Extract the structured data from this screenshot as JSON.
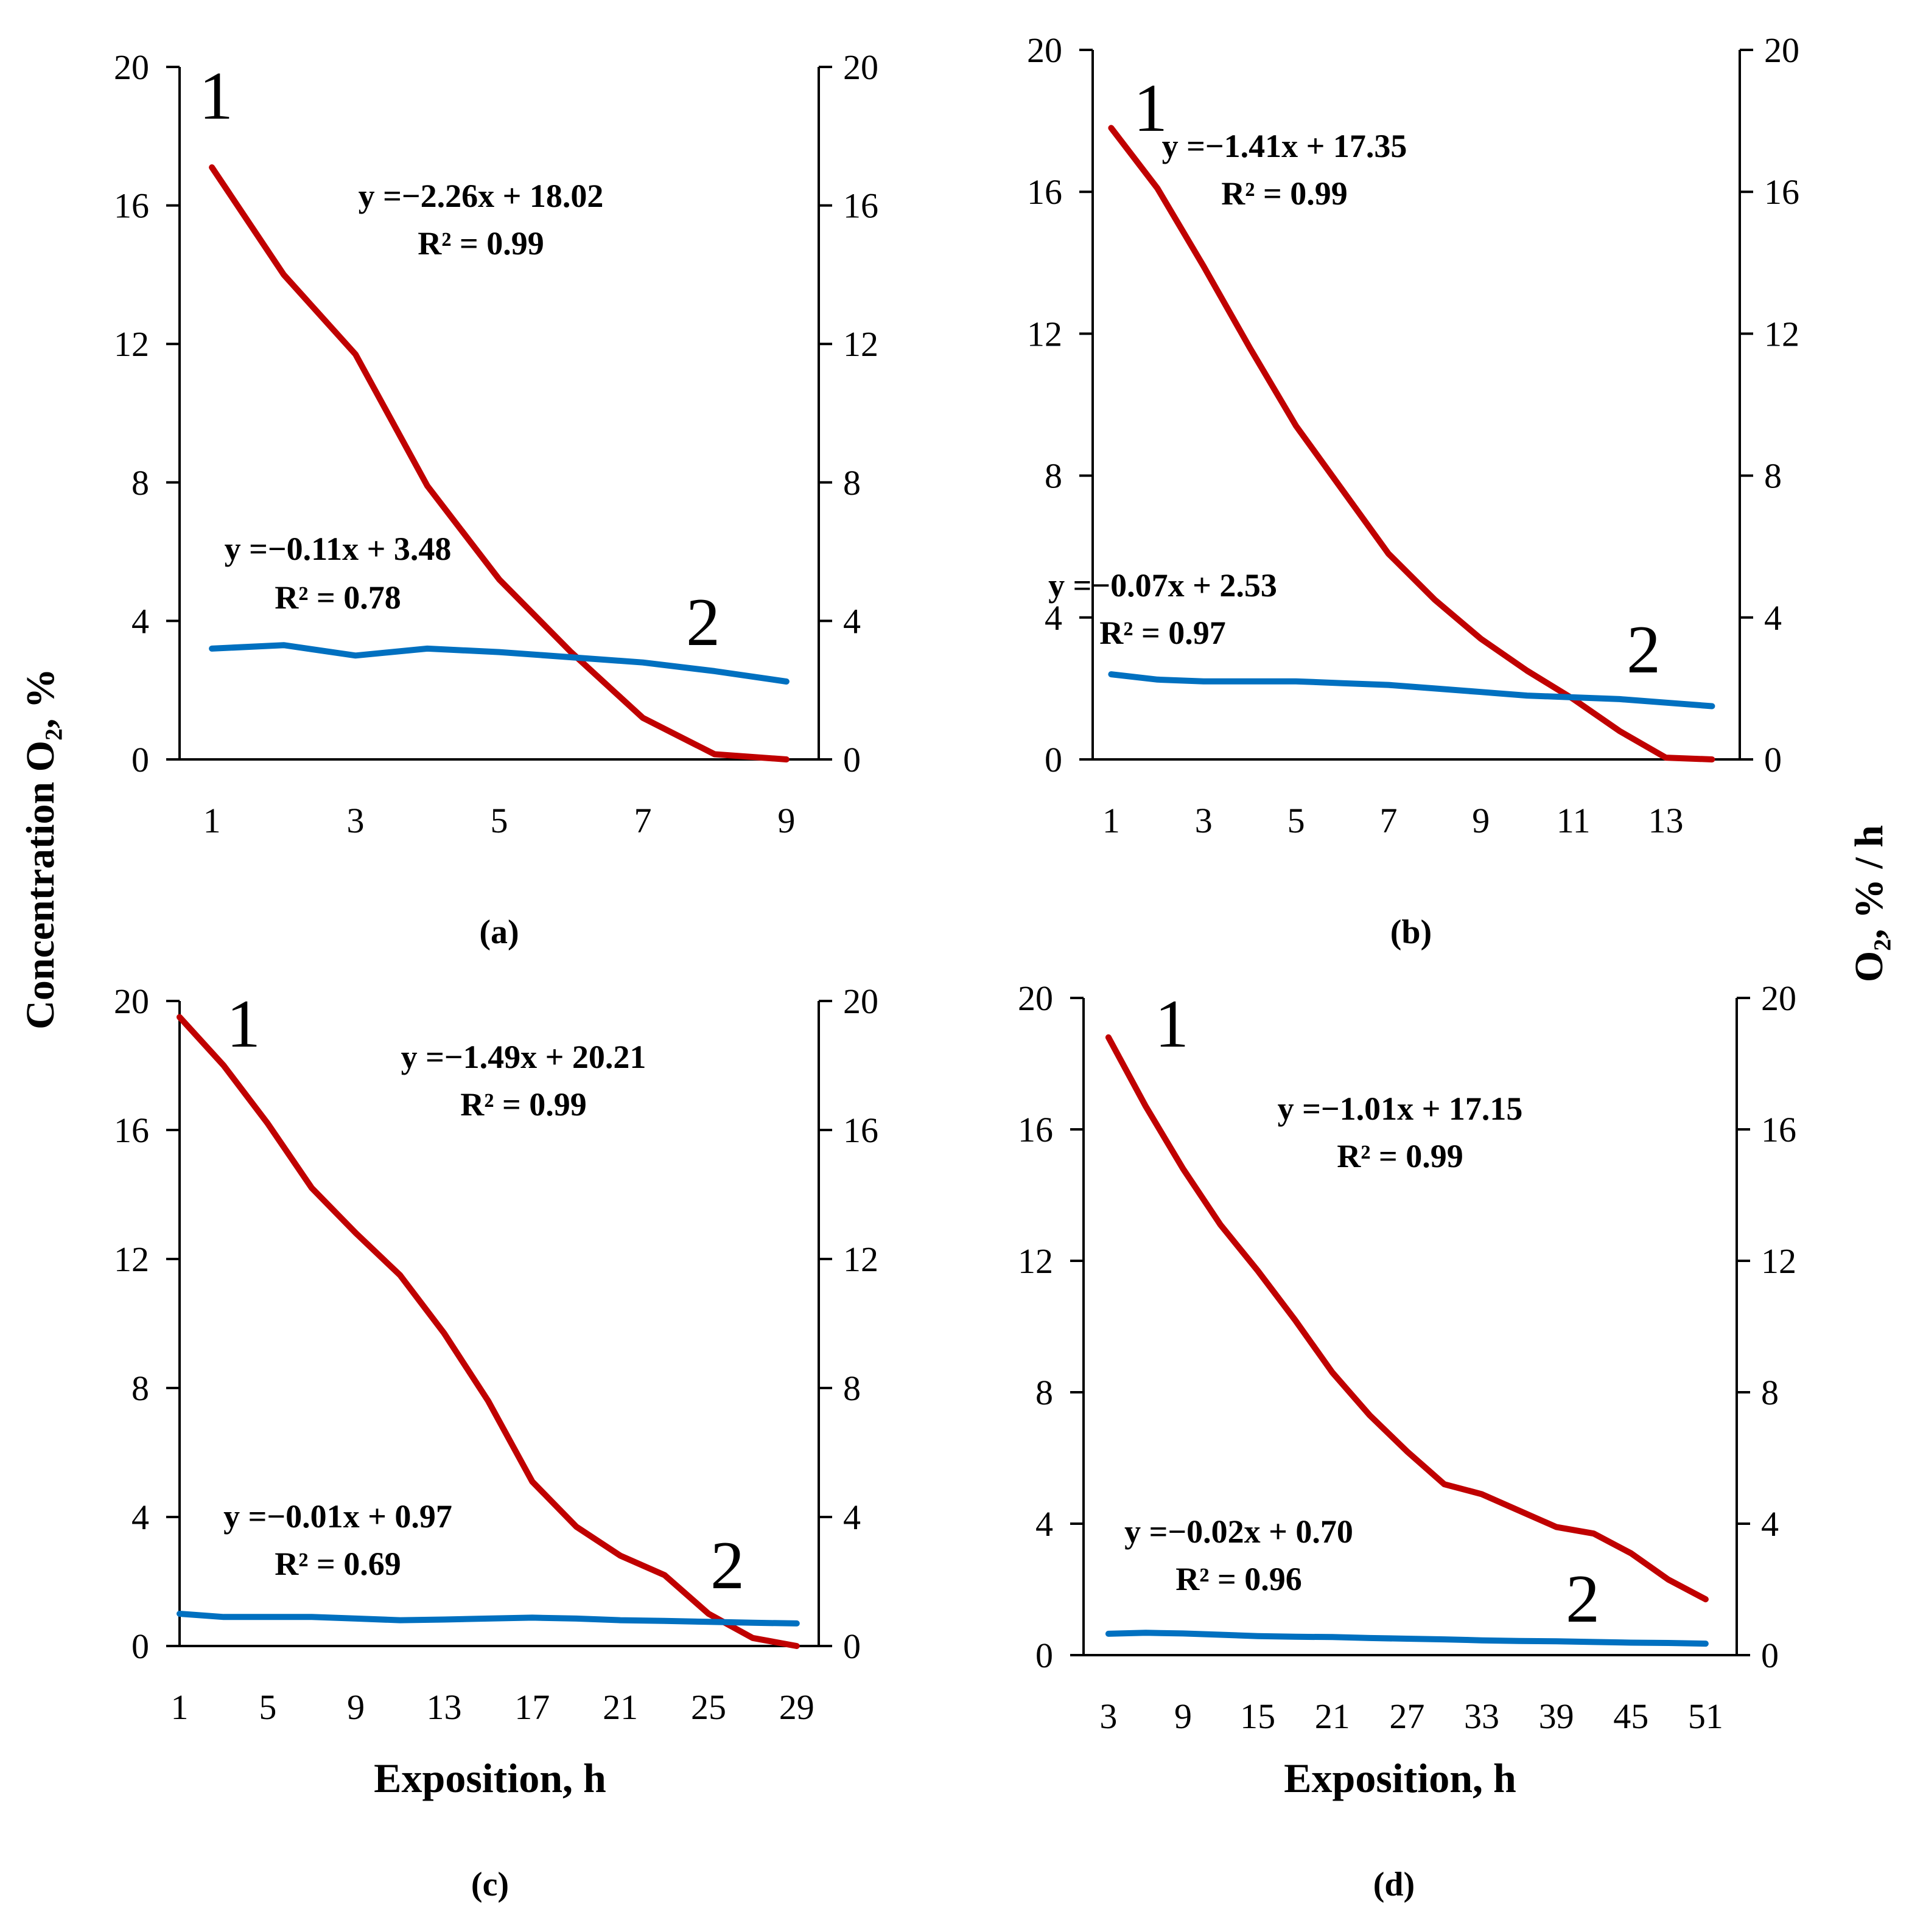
{
  "figure": {
    "left_axis_label": "Concentration O₂, %",
    "right_axis_label": "O₂, % / h",
    "x_axis_label": "Exposition, h"
  },
  "chart_data": [
    {
      "type": "line",
      "panel_label": "(a)",
      "x": [
        1,
        2,
        3,
        4,
        5,
        6,
        7,
        8,
        9
      ],
      "x_ticks": [
        1,
        3,
        5,
        7,
        9
      ],
      "xlim": [
        0.55,
        9.45
      ],
      "ylim": [
        0,
        20
      ],
      "y_ticks": [
        0,
        4,
        8,
        12,
        16,
        20
      ],
      "y2lim": [
        0,
        20
      ],
      "y2_ticks": [
        0,
        4,
        8,
        12,
        16,
        20
      ],
      "series": [
        {
          "marker": "1",
          "color": "#c00000",
          "values": [
            17.1,
            14.0,
            11.7,
            7.9,
            5.2,
            3.1,
            1.2,
            0.15,
            0.0
          ],
          "equation": "y =−2.26x + 18.02",
          "r2": "R² = 0.99"
        },
        {
          "marker": "2",
          "color": "#0070c0",
          "values": [
            3.2,
            3.3,
            3.0,
            3.2,
            3.1,
            2.95,
            2.8,
            2.55,
            2.25
          ],
          "equation": "y =−0.11x + 3.48",
          "r2": "R² = 0.78"
        }
      ]
    },
    {
      "type": "line",
      "panel_label": "(b)",
      "x": [
        1,
        2,
        3,
        4,
        5,
        6,
        7,
        8,
        9,
        10,
        11,
        12,
        13,
        14
      ],
      "x_ticks": [
        1,
        3,
        5,
        7,
        9,
        11,
        13
      ],
      "xlim": [
        0.6,
        14.6
      ],
      "ylim": [
        0,
        20
      ],
      "y_ticks": [
        0,
        4,
        8,
        12,
        16,
        20
      ],
      "y2lim": [
        0,
        20
      ],
      "y2_ticks": [
        0,
        4,
        8,
        12,
        16,
        20
      ],
      "series": [
        {
          "marker": "1",
          "color": "#c00000",
          "values": [
            17.8,
            16.1,
            13.9,
            11.6,
            9.4,
            7.6,
            5.8,
            4.5,
            3.4,
            2.5,
            1.7,
            0.8,
            0.05,
            0.0
          ],
          "equation": "y =−1.41x + 17.35",
          "r2": "R² = 0.99"
        },
        {
          "marker": "2",
          "color": "#0070c0",
          "values": [
            2.4,
            2.25,
            2.2,
            2.2,
            2.2,
            2.15,
            2.1,
            2.0,
            1.9,
            1.8,
            1.75,
            1.7,
            1.6,
            1.5
          ],
          "equation": "y =−0.07x + 2.53",
          "r2": "R² = 0.97"
        }
      ]
    },
    {
      "type": "line",
      "panel_label": "(c)",
      "x": [
        1,
        3,
        5,
        7,
        9,
        11,
        13,
        15,
        17,
        19,
        21,
        23,
        25,
        27,
        29
      ],
      "x_ticks": [
        1,
        5,
        9,
        13,
        17,
        21,
        25,
        29
      ],
      "xlim": [
        1,
        30
      ],
      "ylim": [
        0,
        20
      ],
      "y_ticks": [
        0,
        4,
        8,
        12,
        16,
        20
      ],
      "y2lim": [
        0,
        20
      ],
      "y2_ticks": [
        0,
        4,
        8,
        12,
        16,
        20
      ],
      "series": [
        {
          "marker": "1",
          "color": "#c00000",
          "values": [
            19.5,
            18.0,
            16.2,
            14.2,
            12.8,
            11.5,
            9.7,
            7.6,
            5.1,
            3.7,
            2.8,
            2.2,
            1.0,
            0.25,
            0.0
          ],
          "equation": "y =−1.49x + 20.21",
          "r2": "R² = 0.99"
        },
        {
          "marker": "2",
          "color": "#0070c0",
          "values": [
            1.0,
            0.9,
            0.9,
            0.9,
            0.85,
            0.8,
            0.82,
            0.85,
            0.88,
            0.85,
            0.8,
            0.78,
            0.75,
            0.72,
            0.7
          ],
          "equation": "y =−0.01x + 0.97",
          "r2": "R² = 0.69"
        }
      ]
    },
    {
      "type": "line",
      "panel_label": "(d)",
      "x": [
        3,
        6,
        9,
        12,
        15,
        18,
        21,
        24,
        27,
        30,
        33,
        36,
        39,
        42,
        45,
        48,
        51
      ],
      "x_ticks": [
        3,
        9,
        15,
        21,
        27,
        33,
        39,
        45,
        51
      ],
      "xlim": [
        1,
        53.5
      ],
      "ylim": [
        0,
        20
      ],
      "y_ticks": [
        0,
        4,
        8,
        12,
        16,
        20
      ],
      "y2lim": [
        0,
        20
      ],
      "y2_ticks": [
        0,
        4,
        8,
        12,
        16,
        20
      ],
      "series": [
        {
          "marker": "1",
          "color": "#c00000",
          "values": [
            18.8,
            16.7,
            14.8,
            13.1,
            11.7,
            10.2,
            8.6,
            7.3,
            6.2,
            5.2,
            4.9,
            4.4,
            3.9,
            3.7,
            3.1,
            2.3,
            1.7
          ],
          "equation": "y =−1.01x + 17.15",
          "r2": "R² = 0.99"
        },
        {
          "marker": "2",
          "color": "#0070c0",
          "values": [
            0.65,
            0.68,
            0.66,
            0.62,
            0.58,
            0.56,
            0.55,
            0.52,
            0.5,
            0.48,
            0.45,
            0.43,
            0.42,
            0.4,
            0.38,
            0.37,
            0.35
          ],
          "equation": "y =−0.02x + 0.70",
          "r2": "R² = 0.96"
        }
      ]
    }
  ]
}
